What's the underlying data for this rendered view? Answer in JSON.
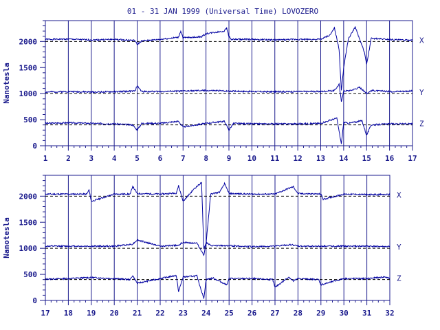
{
  "title": "01 - 31 JAN 1999 (Universal Time) LOVOZERO",
  "colors": {
    "axis": "#1a1a8c",
    "trace": "#0000a0",
    "baseline": "#000000"
  },
  "chart_data": [
    {
      "type": "line",
      "panel": "top",
      "ylabel": "Nanotesla",
      "ylim": [
        0,
        2400
      ],
      "yticks": [
        0,
        500,
        1000,
        1500,
        2000
      ],
      "xlim": [
        1,
        17
      ],
      "xticks": [
        "1",
        "2",
        "3",
        "4",
        "5",
        "6",
        "7",
        "8",
        "9",
        "10",
        "11",
        "12",
        "13",
        "14",
        "15",
        "16",
        "17"
      ],
      "grid": true,
      "series": [
        {
          "name": "X",
          "baseline": 2000,
          "x": [
            1,
            2,
            3,
            4,
            4.9,
            5.0,
            5.2,
            6,
            6.8,
            6.9,
            7.0,
            7.8,
            8.0,
            8.8,
            8.9,
            9.0,
            9.1,
            10,
            11,
            12,
            13,
            13.4,
            13.6,
            13.8,
            13.9,
            14.0,
            14.2,
            14.5,
            14.7,
            14.9,
            15.0,
            15.2,
            16,
            17
          ],
          "y": [
            2040,
            2045,
            2030,
            2040,
            2020,
            1940,
            2010,
            2040,
            2080,
            2200,
            2070,
            2090,
            2150,
            2200,
            2260,
            2100,
            2040,
            2040,
            2030,
            2040,
            2040,
            2120,
            2260,
            1850,
            1050,
            1500,
            2040,
            2280,
            2040,
            1800,
            1550,
            2060,
            2040,
            2020
          ]
        },
        {
          "name": "Y",
          "baseline": 1000,
          "x": [
            1,
            2,
            3,
            4,
            4.9,
            5.0,
            5.2,
            6,
            7,
            8,
            9,
            10,
            11,
            12,
            13,
            13.6,
            13.8,
            13.9,
            14.0,
            14.3,
            14.7,
            15.0,
            15.2,
            16,
            17
          ],
          "y": [
            1030,
            1040,
            1030,
            1035,
            1050,
            1150,
            1040,
            1040,
            1050,
            1060,
            1050,
            1040,
            1035,
            1040,
            1040,
            1060,
            1180,
            850,
            1050,
            1060,
            1120,
            1000,
            1060,
            1040,
            1050
          ]
        },
        {
          "name": "Z",
          "baseline": 400,
          "x": [
            1,
            2,
            3,
            4,
            4.8,
            5.0,
            5.2,
            6,
            6.8,
            7.0,
            8,
            8.8,
            9.0,
            9.2,
            10,
            11,
            12,
            13,
            13.7,
            13.8,
            13.9,
            14.0,
            14.2,
            14.8,
            15.0,
            15.2,
            16,
            17
          ],
          "y": [
            430,
            440,
            430,
            420,
            400,
            300,
            430,
            430,
            470,
            360,
            430,
            470,
            300,
            430,
            420,
            420,
            420,
            430,
            530,
            280,
            30,
            450,
            430,
            480,
            200,
            400,
            420,
            420
          ]
        }
      ]
    },
    {
      "type": "line",
      "panel": "bottom",
      "ylabel": "Nanotesla",
      "ylim": [
        0,
        2400
      ],
      "yticks": [
        0,
        500,
        1000,
        1500,
        2000
      ],
      "xlim": [
        17,
        32
      ],
      "xticks": [
        "17",
        "18",
        "19",
        "20",
        "21",
        "22",
        "23",
        "24",
        "25",
        "26",
        "27",
        "28",
        "29",
        "30",
        "31",
        "32"
      ],
      "grid": true,
      "series": [
        {
          "name": "X",
          "baseline": 2000,
          "x": [
            17,
            18,
            18.8,
            18.9,
            19.0,
            20,
            20.7,
            20.8,
            21.0,
            22,
            22.7,
            22.8,
            23.0,
            23.5,
            23.8,
            23.9,
            24.0,
            24.2,
            24.6,
            24.8,
            25.0,
            26,
            27,
            27.6,
            27.8,
            28,
            29,
            29.1,
            30,
            31,
            32
          ],
          "y": [
            2040,
            2040,
            2040,
            2120,
            1900,
            2040,
            2040,
            2190,
            2050,
            2040,
            2060,
            2200,
            1900,
            2150,
            2260,
            1000,
            1100,
            2040,
            2080,
            2240,
            2050,
            2040,
            2040,
            2150,
            2180,
            2050,
            2040,
            1940,
            2040,
            2030,
            2030
          ]
        },
        {
          "name": "Y",
          "baseline": 1000,
          "x": [
            17,
            18,
            19,
            20,
            20.8,
            21.0,
            22,
            22.8,
            23.0,
            23.6,
            23.9,
            24.0,
            24.2,
            25,
            26,
            27,
            27.7,
            28,
            29,
            30,
            31,
            32
          ],
          "y": [
            1040,
            1040,
            1040,
            1040,
            1080,
            1160,
            1040,
            1060,
            1110,
            1100,
            870,
            1110,
            1050,
            1050,
            1030,
            1040,
            1070,
            1040,
            1040,
            1040,
            1040,
            1030
          ]
        },
        {
          "name": "Z",
          "baseline": 400,
          "x": [
            17,
            18,
            19,
            20,
            20.7,
            20.8,
            21.0,
            22,
            22.7,
            22.8,
            23.0,
            23.6,
            23.8,
            23.9,
            24.0,
            24.3,
            24.9,
            25.0,
            26,
            26.9,
            27.0,
            27.6,
            27.8,
            28,
            28.9,
            29.0,
            30,
            31,
            31.8,
            32
          ],
          "y": [
            410,
            420,
            440,
            420,
            400,
            480,
            330,
            420,
            480,
            170,
            450,
            470,
            180,
            40,
            400,
            430,
            300,
            420,
            420,
            400,
            250,
            450,
            370,
            420,
            400,
            300,
            420,
            420,
            450,
            420
          ]
        }
      ]
    }
  ]
}
